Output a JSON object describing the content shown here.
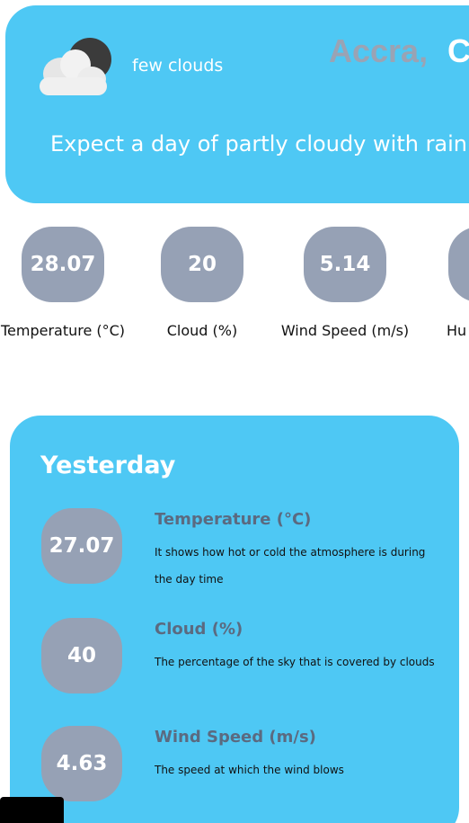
{
  "header": {
    "condition": "few clouds",
    "city": "Accra,",
    "country": "C",
    "forecast": "Expect a day of partly cloudy with rain",
    "icon": "cloud-moon-icon"
  },
  "metrics": [
    {
      "value": "28.07",
      "label": "Temperature (°C)"
    },
    {
      "value": "20",
      "label": "Cloud (%)"
    },
    {
      "value": "5.14",
      "label": "Wind Speed (m/s)"
    },
    {
      "value": "",
      "label": "Hu"
    }
  ],
  "yesterday": {
    "title": "Yesterday",
    "items": [
      {
        "value": "27.07",
        "name": "Temperature (°C)",
        "description": "It shows how hot or cold the atmosphere is during the day time"
      },
      {
        "value": "40",
        "name": "Cloud (%)",
        "description": "The percentage of the sky that is covered by clouds"
      },
      {
        "value": "4.63",
        "name": "Wind Speed (m/s)",
        "description": "The speed at which the wind blows"
      }
    ]
  },
  "colors": {
    "card": "#4ec8f4",
    "bubble": "#96a1b5",
    "metric_name": "#5b6a80",
    "city": "#9aa3b4"
  }
}
